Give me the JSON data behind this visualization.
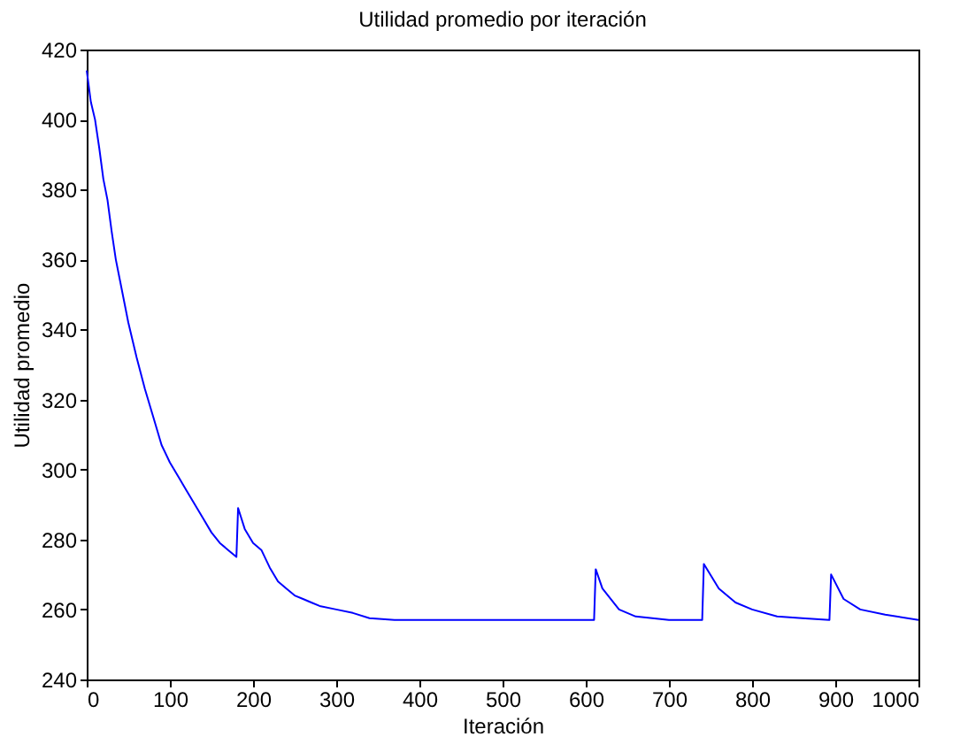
{
  "chart_data": {
    "type": "line",
    "title": "Utilidad promedio por iteración",
    "xlabel": "Iteración",
    "ylabel": "Utilidad promedio",
    "x": [
      0,
      5,
      10,
      15,
      20,
      25,
      30,
      35,
      40,
      50,
      60,
      70,
      80,
      90,
      100,
      110,
      120,
      130,
      140,
      150,
      160,
      170,
      180,
      182,
      190,
      200,
      210,
      220,
      230,
      240,
      250,
      260,
      270,
      280,
      300,
      320,
      340,
      370,
      610,
      612,
      620,
      640,
      660,
      700,
      740,
      742,
      760,
      780,
      800,
      830,
      860,
      893,
      895,
      910,
      930,
      960,
      1000
    ],
    "series": [
      {
        "color": "#0000ff",
        "values": [
          414,
          405,
          400,
          392,
          383,
          377,
          368,
          360,
          354,
          342,
          332,
          323,
          315,
          307,
          302,
          298,
          294,
          290,
          286,
          282,
          279,
          277,
          275,
          289,
          283,
          279,
          277,
          272,
          268,
          266,
          264,
          263,
          262,
          261,
          260,
          259,
          257.5,
          257,
          257,
          271.5,
          266,
          260,
          258,
          257,
          257,
          273,
          266,
          262,
          260,
          258,
          257.5,
          257,
          270,
          263,
          260,
          258.5,
          257
        ]
      }
    ],
    "xlim": [
      0,
      1000
    ],
    "ylim": [
      240,
      420
    ],
    "xticks": [
      0,
      100,
      200,
      300,
      400,
      500,
      600,
      700,
      800,
      900,
      1000
    ],
    "yticks": [
      240,
      260,
      280,
      300,
      320,
      340,
      360,
      380,
      400,
      420
    ],
    "grid": false,
    "marker": "none",
    "line_style": "solid"
  }
}
